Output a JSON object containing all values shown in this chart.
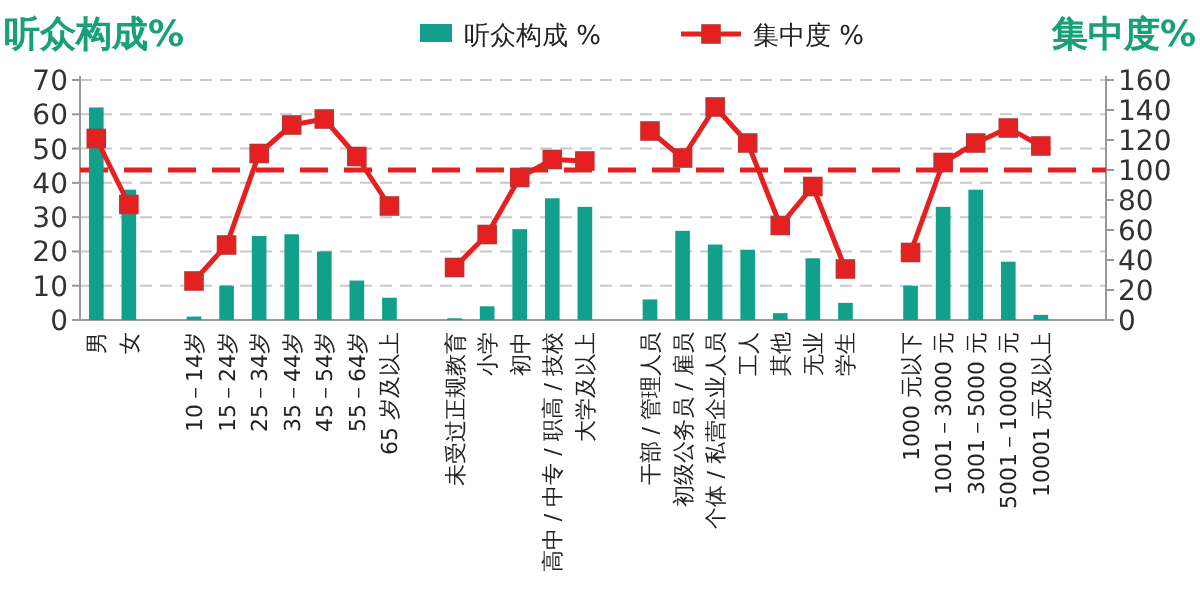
{
  "chart_data": {
    "type": "bar",
    "ylabel": "听众构成%",
    "y2label": "集中度%",
    "categories": [
      "男",
      "女",
      null,
      "10－14岁",
      "15－24岁",
      "25－34岁",
      "35－44岁",
      "45－54岁",
      "55－64岁",
      "65 岁及以上",
      null,
      "未受过正规教育",
      "小学",
      "初中",
      "高中 / 中专 / 职高 / 技校",
      "大学及以上",
      null,
      "干部 / 管理人员",
      "初级公务员 / 雇员",
      "个体 / 私营企业人员",
      "工人",
      "其他",
      "无业",
      "学生",
      null,
      "1000 元以下",
      "1001－3000 元",
      "3001－5000 元",
      "5001－10000 元",
      "10001 元及以上"
    ],
    "series": [
      {
        "name": "听众构成 %",
        "color": "#12a08c",
        "values": [
          62,
          38,
          null,
          1,
          10,
          24.5,
          25,
          20,
          11.5,
          6.5,
          null,
          0.5,
          4,
          26.5,
          35.5,
          33,
          null,
          6,
          26,
          22,
          20.5,
          2,
          18,
          5,
          null,
          10,
          33,
          38,
          17,
          1.5
        ]
      },
      {
        "name": "集中度 %",
        "type": "line",
        "axis": "y2",
        "color": "#e62020",
        "marker": "square",
        "values": [
          121,
          77,
          null,
          26,
          50,
          111,
          130,
          134,
          109,
          76,
          null,
          35,
          57,
          95,
          107,
          106,
          null,
          126,
          108,
          142,
          118,
          63,
          89,
          34,
          null,
          45,
          105,
          118,
          128,
          116
        ]
      }
    ],
    "ylim": [
      0,
      70
    ],
    "yticks": [
      0,
      10,
      20,
      30,
      40,
      50,
      60,
      70
    ],
    "y2lim": [
      0,
      160
    ],
    "y2ticks": [
      0,
      20,
      40,
      60,
      80,
      100,
      120,
      140,
      160
    ],
    "ref_lines": [
      {
        "axis": "y2",
        "value": 100,
        "color": "#e62020",
        "line_style": "dashed"
      }
    ],
    "grid": "y",
    "legend": "top"
  }
}
